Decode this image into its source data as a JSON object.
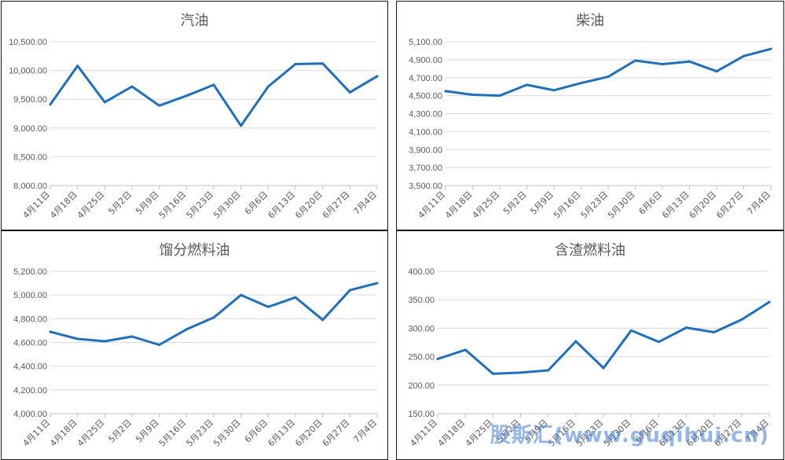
{
  "chart_data": [
    {
      "type": "line",
      "title": "汽油",
      "categories": [
        "4月11日",
        "4月18日",
        "4月25日",
        "5月2日",
        "5月9日",
        "5月16日",
        "5月23日",
        "5月30日",
        "6月6日",
        "6月13日",
        "6月20日",
        "6月27日",
        "7月4日"
      ],
      "values": [
        9410,
        10080,
        9450,
        9720,
        9390,
        9560,
        9750,
        9040,
        9720,
        10110,
        10120,
        9620,
        9900
      ],
      "ylim": [
        8000,
        10500
      ],
      "yticks": [
        "10,500.00",
        "10,000.00",
        "9,500.00",
        "9,000.00",
        "8,500.00",
        "8,000.00"
      ],
      "grid": true,
      "color": "#1f6fbf"
    },
    {
      "type": "line",
      "title": "柴油",
      "categories": [
        "4月11日",
        "4月18日",
        "4月25日",
        "5月2日",
        "5月9日",
        "5月16日",
        "5月23日",
        "5月30日",
        "6月6日",
        "6月13日",
        "6月20日",
        "6月27日",
        "7月4日"
      ],
      "values": [
        4550,
        4510,
        4500,
        4620,
        4560,
        4640,
        4710,
        4890,
        4850,
        4880,
        4770,
        4940,
        5020
      ],
      "ylim": [
        3500,
        5100
      ],
      "yticks": [
        "5,100.00",
        "4,900.00",
        "4,700.00",
        "4,500.00",
        "4,300.00",
        "4,100.00",
        "3,900.00",
        "3,700.00",
        "3,500.00"
      ],
      "grid": true,
      "color": "#1f6fbf"
    },
    {
      "type": "line",
      "title": "馏分燃料油",
      "categories": [
        "4月11日",
        "4月18日",
        "4月25日",
        "5月2日",
        "5月9日",
        "5月16日",
        "5月23日",
        "5月30日",
        "6月6日",
        "6月13日",
        "6月20日",
        "6月27日",
        "7月4日"
      ],
      "values": [
        4690,
        4630,
        4610,
        4650,
        4580,
        4710,
        4810,
        5000,
        4900,
        4980,
        4790,
        5040,
        5100
      ],
      "ylim": [
        4000,
        5200
      ],
      "yticks": [
        "5,200.00",
        "5,000.00",
        "4,800.00",
        "4,600.00",
        "4,400.00",
        "4,200.00",
        "4,000.00"
      ],
      "grid": true,
      "color": "#1f6fbf"
    },
    {
      "type": "line",
      "title": "含渣燃料油",
      "categories": [
        "4月11日",
        "4月18日",
        "4月25日",
        "5月2日",
        "5月9日",
        "5月16日",
        "5月23日",
        "5月30日",
        "6月6日",
        "6月13日",
        "6月20日",
        "6月27日",
        "7月4日"
      ],
      "values": [
        246,
        262,
        220,
        222,
        226,
        277,
        230,
        296,
        276,
        301,
        293,
        315,
        346
      ],
      "ylim": [
        150,
        400
      ],
      "yticks": [
        "400.00",
        "350.00",
        "300.00",
        "250.00",
        "200.00",
        "150.00"
      ],
      "grid": true,
      "color": "#1f6fbf"
    }
  ],
  "watermark": "股斯汇(www.guqihui.cn)"
}
